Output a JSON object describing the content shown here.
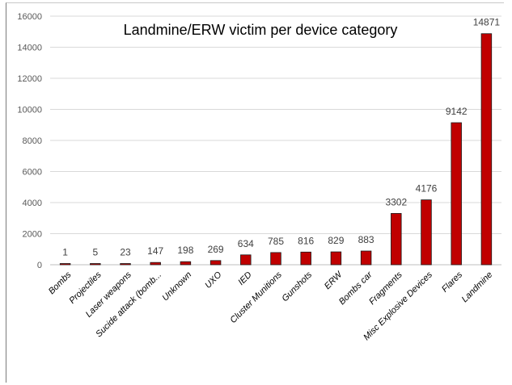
{
  "chart_data": {
    "type": "bar",
    "title": "Landmine/ERW victim per device category",
    "xlabel": "",
    "ylabel": "",
    "ylim": [
      0,
      16000
    ],
    "yticks": [
      0,
      2000,
      4000,
      6000,
      8000,
      10000,
      12000,
      14000,
      16000
    ],
    "grid": true,
    "legend": "none",
    "bar_color": "#c00000",
    "bar_edge_color": "#1a1a1a",
    "categories": [
      "Bombs",
      "Projectiles",
      "Laser weapons",
      "Sucide attack (bomb...",
      "Unknown",
      "UXO",
      "IED",
      "Cluster Munitions",
      "Gunshots",
      "ERW",
      "Bombs car",
      "Fragments",
      "Misc Explosive Devices",
      "Flares",
      "Landmine"
    ],
    "values": [
      1,
      5,
      23,
      147,
      198,
      269,
      634,
      785,
      816,
      829,
      883,
      3302,
      4176,
      9142,
      14871
    ]
  }
}
